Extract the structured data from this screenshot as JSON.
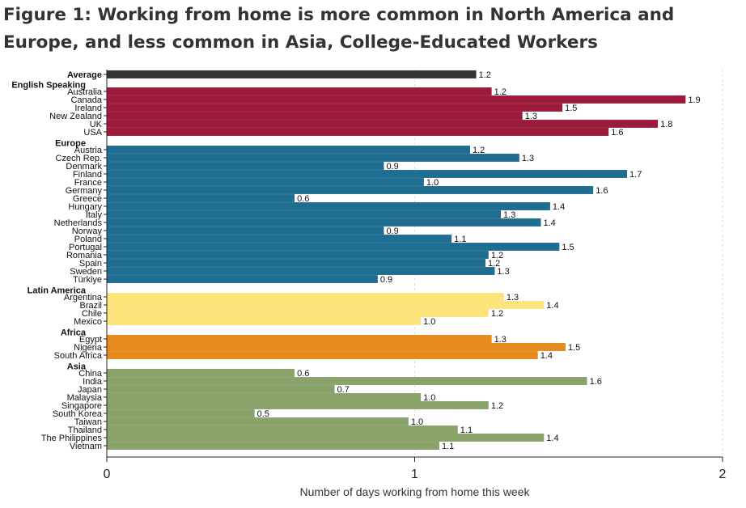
{
  "title": "Figure 1: Working from home is more common in North America and Europe, and less common in Asia, College-Educated Workers",
  "chart_data": {
    "type": "bar",
    "orientation": "horizontal",
    "xlabel": "Number of days working from home this week",
    "xlim": [
      0,
      2
    ],
    "xticks": [
      0,
      1,
      2
    ],
    "grid": "vertical dashed at x ticks",
    "average": {
      "label": "Average",
      "value": 1.2,
      "color": "#333333"
    },
    "groups": [
      {
        "name": "English Speaking",
        "color": "#9c1b3c",
        "items": [
          {
            "label": "Australia",
            "value": 1.25,
            "display": "1.2"
          },
          {
            "label": "Canada",
            "value": 1.88,
            "display": "1.9"
          },
          {
            "label": "Ireland",
            "value": 1.48,
            "display": "1.5"
          },
          {
            "label": "New Zealand",
            "value": 1.35,
            "display": "1.3"
          },
          {
            "label": "UK",
            "value": 1.79,
            "display": "1.8"
          },
          {
            "label": "USA",
            "value": 1.63,
            "display": "1.6"
          }
        ]
      },
      {
        "name": "Europe",
        "color": "#1f6e91",
        "items": [
          {
            "label": "Austria",
            "value": 1.18,
            "display": "1.2"
          },
          {
            "label": "Czech Rep.",
            "value": 1.34,
            "display": "1.3"
          },
          {
            "label": "Denmark",
            "value": 0.9,
            "display": "0.9"
          },
          {
            "label": "Finland",
            "value": 1.69,
            "display": "1.7"
          },
          {
            "label": "France",
            "value": 1.03,
            "display": "1.0"
          },
          {
            "label": "Germany",
            "value": 1.58,
            "display": "1.6"
          },
          {
            "label": "Greece",
            "value": 0.61,
            "display": "0.6"
          },
          {
            "label": "Hungary",
            "value": 1.44,
            "display": "1.4"
          },
          {
            "label": "Italy",
            "value": 1.28,
            "display": "1.3"
          },
          {
            "label": "Netherlands",
            "value": 1.41,
            "display": "1.4"
          },
          {
            "label": "Norway",
            "value": 0.9,
            "display": "0.9"
          },
          {
            "label": "Poland",
            "value": 1.12,
            "display": "1.1"
          },
          {
            "label": "Portugal",
            "value": 1.47,
            "display": "1.5"
          },
          {
            "label": "Romania",
            "value": 1.24,
            "display": "1.2"
          },
          {
            "label": "Spain",
            "value": 1.23,
            "display": "1.2"
          },
          {
            "label": "Sweden",
            "value": 1.26,
            "display": "1.3"
          },
          {
            "label": "Türkiye",
            "value": 0.88,
            "display": "0.9"
          }
        ]
      },
      {
        "name": "Latin America",
        "color": "#fde47a",
        "items": [
          {
            "label": "Argentina",
            "value": 1.29,
            "display": "1.3"
          },
          {
            "label": "Brazil",
            "value": 1.42,
            "display": "1.4"
          },
          {
            "label": "Chile",
            "value": 1.24,
            "display": "1.2"
          },
          {
            "label": "Mexico",
            "value": 1.02,
            "display": "1.0"
          }
        ]
      },
      {
        "name": "Africa",
        "color": "#e68a1e",
        "items": [
          {
            "label": "Egypt",
            "value": 1.25,
            "display": "1.3"
          },
          {
            "label": "Nigeria",
            "value": 1.49,
            "display": "1.5"
          },
          {
            "label": "South Africa",
            "value": 1.4,
            "display": "1.4"
          }
        ]
      },
      {
        "name": "Asia",
        "color": "#89a36a",
        "items": [
          {
            "label": "China",
            "value": 0.61,
            "display": "0.6"
          },
          {
            "label": "India",
            "value": 1.56,
            "display": "1.6"
          },
          {
            "label": "Japan",
            "value": 0.74,
            "display": "0.7"
          },
          {
            "label": "Malaysia",
            "value": 1.02,
            "display": "1.0"
          },
          {
            "label": "Singapore",
            "value": 1.24,
            "display": "1.2"
          },
          {
            "label": "South Korea",
            "value": 0.48,
            "display": "0.5"
          },
          {
            "label": "Taiwan",
            "value": 0.98,
            "display": "1.0"
          },
          {
            "label": "Thailand",
            "value": 1.14,
            "display": "1.1"
          },
          {
            "label": "The Philippines",
            "value": 1.42,
            "display": "1.4"
          },
          {
            "label": "Vietnam",
            "value": 1.08,
            "display": "1.1"
          }
        ]
      }
    ]
  }
}
